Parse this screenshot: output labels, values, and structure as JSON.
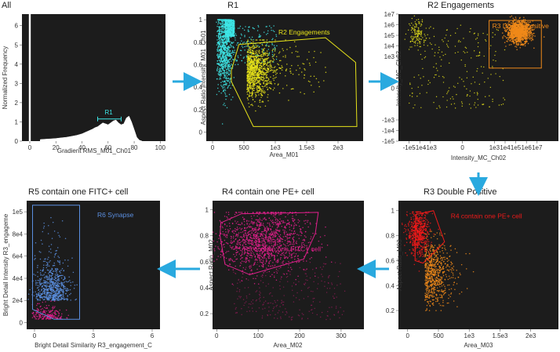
{
  "colors": {
    "plot_bg": "#1c1c1c",
    "cyan": "#3ee6e6",
    "yellow": "#e6e21a",
    "orange": "#f08a1a",
    "red": "#ee1a1a",
    "magenta": "#e0208c",
    "blue": "#5b8fe0",
    "arrow": "#29a9df"
  },
  "chart_data": [
    {
      "id": "all",
      "type": "area",
      "title": "All",
      "xlabel": "Gradient RMS_M01_Ch01",
      "ylabel": "Normalized Frequency",
      "x_ticks": [
        "0",
        "20",
        "40",
        "60",
        "80",
        "100"
      ],
      "y_ticks": [
        "0",
        "1",
        "2",
        "3",
        "4",
        "5",
        "6"
      ],
      "xlim": [
        -6,
        104
      ],
      "ylim": [
        0,
        6.6
      ],
      "spike": {
        "x": 0,
        "height": 6.6
      },
      "histogram": [
        [
          8,
          0.08
        ],
        [
          12,
          0.1
        ],
        [
          16,
          0.12
        ],
        [
          20,
          0.14
        ],
        [
          24,
          0.17
        ],
        [
          28,
          0.2
        ],
        [
          32,
          0.25
        ],
        [
          36,
          0.3
        ],
        [
          40,
          0.38
        ],
        [
          44,
          0.5
        ],
        [
          48,
          0.62
        ],
        [
          50,
          0.7
        ],
        [
          52,
          0.75
        ],
        [
          54,
          0.85
        ],
        [
          56,
          0.95
        ],
        [
          58,
          0.9
        ],
        [
          60,
          0.85
        ],
        [
          62,
          0.95
        ],
        [
          64,
          1.05
        ],
        [
          66,
          1.1
        ],
        [
          68,
          0.95
        ],
        [
          70,
          0.85
        ],
        [
          72,
          0.9
        ],
        [
          74,
          1.2
        ],
        [
          76,
          1.3
        ],
        [
          78,
          1.0
        ],
        [
          80,
          0.6
        ],
        [
          82,
          0.2
        ],
        [
          84,
          0.05
        ],
        [
          86,
          0
        ]
      ],
      "gates": [
        {
          "name": "R1",
          "range": [
            52,
            70
          ],
          "y": 1.15,
          "color_key": "cyan"
        }
      ]
    },
    {
      "id": "r1",
      "type": "scatter",
      "title": "R1",
      "xlabel": "Area_M01",
      "ylabel": "Aspect Ratio Intensity_M01_Ch01",
      "x_ticks": [
        "0",
        "500",
        "1e3",
        "1.5e3",
        "2e3"
      ],
      "y_ticks": [
        "0",
        "0.2",
        "0.4",
        "0.6",
        "0.8",
        "1"
      ],
      "xlim": [
        -100,
        2400
      ],
      "ylim": [
        -0.08,
        1.05
      ],
      "gates": [
        {
          "name": "R2 Engagements",
          "color_key": "yellow",
          "polygon": [
            [
              300,
              0.55
            ],
            [
              420,
              0.78
            ],
            [
              1800,
              0.84
            ],
            [
              2280,
              0.62
            ],
            [
              2300,
              0.05
            ],
            [
              650,
              0.05
            ],
            [
              300,
              0.45
            ]
          ]
        }
      ]
    },
    {
      "id": "r2",
      "type": "scatter",
      "title": "R2 Engagements",
      "xlabel": "Intensity_MC_Ch02",
      "ylabel": "Intensity_MC_Ch03",
      "x_ticks": [
        "-1e5",
        "-1e4",
        "-1e3",
        "0",
        "1e3",
        "1e4",
        "1e5",
        "1e6",
        "1e7"
      ],
      "y_ticks": [
        "-1e5",
        "-1e4",
        "-1e3",
        "0",
        "1e3",
        "1e4",
        "1e5",
        "1e6",
        "1e7"
      ],
      "xlim": [
        -6,
        9
      ],
      "ylim": [
        -5,
        7
      ],
      "gates": [
        {
          "name": "R3 Double Positive",
          "color_key": "orange",
          "rect": [
            [
              2.5,
              1.9
            ],
            [
              7.4,
              6.4
            ]
          ]
        }
      ]
    },
    {
      "id": "r3",
      "type": "scatter",
      "title": "R3 Double Positive",
      "xlabel": "Area_M03",
      "ylabel": "Aspect Ratio_M03",
      "x_ticks": [
        "0",
        "500",
        "1e3",
        "1.5e3",
        "2e3"
      ],
      "y_ticks": [
        "0.2",
        "0.4",
        "0.6",
        "0.8",
        "1"
      ],
      "xlim": [
        -150,
        2450
      ],
      "ylim": [
        0.05,
        1.08
      ],
      "gates": [
        {
          "name": "R4 contain one PE+ cell",
          "color_key": "red",
          "polygon": [
            [
              130,
              0.97
            ],
            [
              420,
              1.0
            ],
            [
              600,
              0.75
            ],
            [
              250,
              0.58
            ],
            [
              120,
              0.6
            ]
          ]
        }
      ]
    },
    {
      "id": "r4",
      "type": "scatter",
      "title": "R4 contain one PE+ cell",
      "xlabel": "Area_M02",
      "ylabel": "Aspect Ratio_M02",
      "x_ticks": [
        "0",
        "100",
        "200",
        "300"
      ],
      "y_ticks": [
        "0.2",
        "0.4",
        "0.6",
        "0.8",
        "1"
      ],
      "xlim": [
        -10,
        355
      ],
      "ylim": [
        0.08,
        1.07
      ],
      "gates": [
        {
          "name": "R5 contain one FITC+ cell",
          "color_key": "magenta",
          "polygon": [
            [
              10,
              0.9
            ],
            [
              60,
              0.97
            ],
            [
              245,
              0.98
            ],
            [
              238,
              0.82
            ],
            [
              210,
              0.62
            ],
            [
              80,
              0.5
            ],
            [
              20,
              0.58
            ],
            [
              8,
              0.8
            ]
          ]
        }
      ]
    },
    {
      "id": "r5",
      "type": "scatter",
      "title": "R5 contain one FITC+ cell",
      "xlabel": "Bright Detail Similarity R3_engagement_C",
      "ylabel": "Bright Detail Intensity R3_engageme",
      "x_ticks": [
        "0",
        "3",
        "6"
      ],
      "y_ticks": [
        "0",
        "2e4",
        "4e4",
        "6e4",
        "8e4",
        "1e5"
      ],
      "xlim": [
        -0.4,
        6.4
      ],
      "ylim": [
        -6000,
        110000
      ],
      "gates": [
        {
          "name": "R6 Synapse",
          "color_key": "blue",
          "polygon": [
            [
              -0.1,
              106000
            ],
            [
              2.3,
              106000
            ],
            [
              2.3,
              3000
            ],
            [
              1.0,
              3000
            ],
            [
              -0.1,
              12000
            ]
          ]
        }
      ]
    }
  ]
}
